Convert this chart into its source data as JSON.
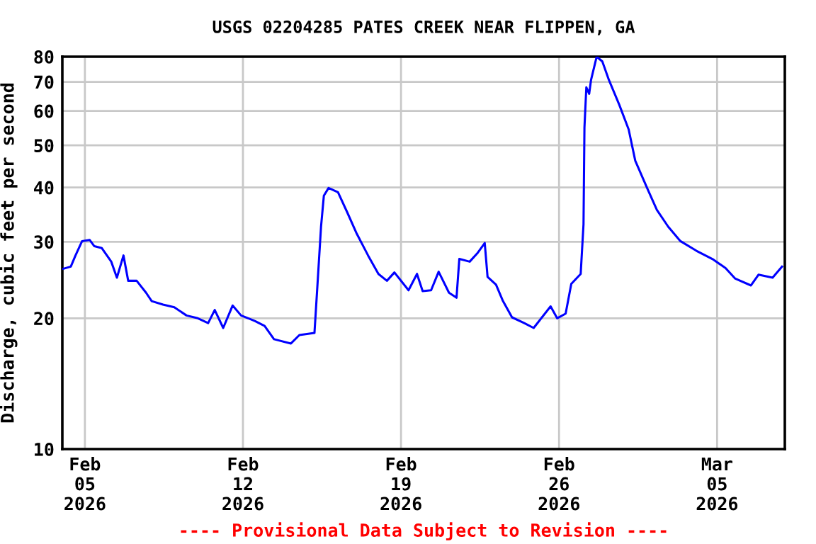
{
  "chart_data": {
    "type": "line",
    "title": "USGS 02204285 PATES CREEK NEAR FLIPPEN, GA",
    "ylabel": "Discharge, cubic feet per second",
    "annotations": [
      "---- Provisional Data Subject to Revision ----"
    ],
    "log": "y",
    "grid": true,
    "legend": false,
    "marker": "none",
    "line_style": "solid",
    "xlim": [
      "2026-02-04T00:00",
      "2026-03-08T00:00"
    ],
    "xticks": [
      {
        "value": "2026-02-05",
        "label": "Feb\n05\n2026"
      },
      {
        "value": "2026-02-12",
        "label": "Feb\n12\n2026"
      },
      {
        "value": "2026-02-19",
        "label": "Feb\n19\n2026"
      },
      {
        "value": "2026-02-26",
        "label": "Feb\n26\n2026"
      },
      {
        "value": "2026-03-05",
        "label": "Mar\n05\n2026"
      }
    ],
    "ylim": [
      10,
      80
    ],
    "yticks": [
      10,
      20,
      30,
      40,
      50,
      60,
      70,
      80
    ],
    "x": [
      "2026-02-04T01:00",
      "2026-02-04T09:00",
      "2026-02-04T14:00",
      "2026-02-04T21:00",
      "2026-02-05T05:00",
      "2026-02-05T10:00",
      "2026-02-05T18:00",
      "2026-02-06T04:00",
      "2026-02-06T10:00",
      "2026-02-06T17:00",
      "2026-02-06T22:00",
      "2026-02-07T07:00",
      "2026-02-07T17:00",
      "2026-02-07T23:00",
      "2026-02-08T11:00",
      "2026-02-08T23:00",
      "2026-02-09T12:00",
      "2026-02-10T00:00",
      "2026-02-10T11:00",
      "2026-02-10T18:00",
      "2026-02-11T03:00",
      "2026-02-11T13:00",
      "2026-02-11T22:00",
      "2026-02-12T08:00",
      "2026-02-12T13:00",
      "2026-02-12T23:00",
      "2026-02-13T09:00",
      "2026-02-14T03:00",
      "2026-02-14T12:00",
      "2026-02-15T04:00",
      "2026-02-15T07:00",
      "2026-02-15T11:00",
      "2026-02-15T14:00",
      "2026-02-15T19:00",
      "2026-02-16T05:00",
      "2026-02-16T15:00",
      "2026-02-17T01:00",
      "2026-02-17T13:00",
      "2026-02-18T00:00",
      "2026-02-18T09:00",
      "2026-02-18T17:00",
      "2026-02-19T08:00",
      "2026-02-19T17:00",
      "2026-02-19T23:00",
      "2026-02-20T08:00",
      "2026-02-20T16:00",
      "2026-02-21T03:00",
      "2026-02-21T11:00",
      "2026-02-21T14:00",
      "2026-02-22T01:00",
      "2026-02-22T09:00",
      "2026-02-22T17:00",
      "2026-02-22T20:00",
      "2026-02-23T05:00",
      "2026-02-23T12:00",
      "2026-02-23T22:00",
      "2026-02-24T11:00",
      "2026-02-24T21:00",
      "2026-02-25T15:00",
      "2026-02-25T22:00",
      "2026-02-26T07:00",
      "2026-02-26T13:00",
      "2026-02-26T23:00",
      "2026-02-27T02:00",
      "2026-02-27T03:00",
      "2026-02-27T05:00",
      "2026-02-27T08:00",
      "2026-02-27T10:00",
      "2026-02-27T16:00",
      "2026-02-27T22:00",
      "2026-02-28T05:00",
      "2026-02-28T16:00",
      "2026-03-01T02:00",
      "2026-03-01T09:00",
      "2026-03-01T22:00",
      "2026-03-02T08:00",
      "2026-03-02T20:00",
      "2026-03-03T09:00",
      "2026-03-04T02:00",
      "2026-03-04T20:00",
      "2026-03-05T09:00",
      "2026-03-05T19:00",
      "2026-03-06T12:00",
      "2026-03-06T20:00",
      "2026-03-07T11:00",
      "2026-03-07T21:00"
    ],
    "series": [
      {
        "color": "#0000ff",
        "values": [
          26,
          26.3,
          27.9,
          30.1,
          30.3,
          29.3,
          29,
          27,
          24.8,
          27.9,
          24.4,
          24.4,
          22.9,
          21.9,
          21.5,
          21.2,
          20.3,
          20,
          19.5,
          20.9,
          19,
          21.4,
          20.3,
          19.9,
          19.7,
          19.2,
          17.9,
          17.5,
          18.3,
          18.5,
          23.5,
          32.5,
          38.3,
          39.9,
          39,
          35,
          31.3,
          27.9,
          25.3,
          24.4,
          25.5,
          23.2,
          25.3,
          23.1,
          23.2,
          25.6,
          22.9,
          22.3,
          27.4,
          27,
          28.2,
          29.8,
          24.9,
          23.9,
          22,
          20.1,
          19.5,
          19,
          21.3,
          20,
          20.5,
          24,
          25.3,
          32.9,
          55,
          68,
          65.7,
          70.7,
          80,
          78,
          70.7,
          62,
          54.4,
          46.1,
          39.7,
          35.5,
          32.5,
          30.1,
          28.6,
          27.3,
          26.1,
          24.7,
          23.8,
          25.2,
          24.8,
          26.3
        ]
      }
    ]
  }
}
